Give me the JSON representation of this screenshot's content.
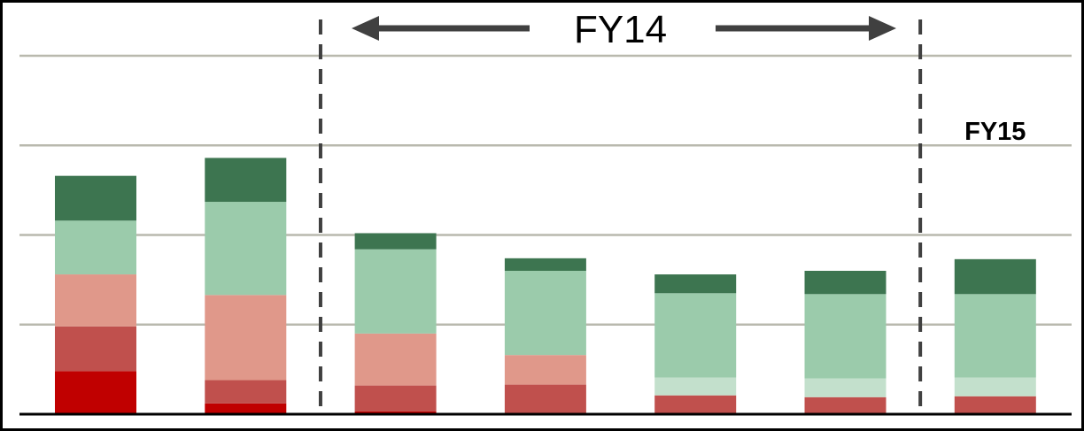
{
  "chart_data": {
    "type": "bar",
    "stacked": true,
    "grid": "horizontal",
    "categories": [
      "",
      "",
      "",
      "",
      "",
      "",
      ""
    ],
    "ylim": [
      0,
      4
    ],
    "segment_colors": [
      "#c00000",
      "#c0504d",
      "#e0988a",
      "#c3e0cc",
      "#9bcbab",
      "#3d7550"
    ],
    "bars": [
      [
        0.48,
        0.5,
        0.58,
        0.0,
        0.6,
        0.5
      ],
      [
        0.12,
        0.26,
        0.95,
        0.0,
        1.04,
        0.49
      ],
      [
        0.03,
        0.29,
        0.58,
        0.0,
        0.94,
        0.18
      ],
      [
        0.0,
        0.33,
        0.33,
        0.0,
        0.94,
        0.14
      ],
      [
        0.0,
        0.21,
        0.0,
        0.2,
        0.94,
        0.21
      ],
      [
        0.0,
        0.19,
        0.0,
        0.21,
        0.94,
        0.26
      ],
      [
        0.0,
        0.2,
        0.0,
        0.21,
        0.93,
        0.39
      ]
    ],
    "annotations": {
      "period_main": "FY14",
      "period_last": "FY15"
    },
    "fy14_span": {
      "from_bar": 2,
      "to_bar": 5
    }
  }
}
